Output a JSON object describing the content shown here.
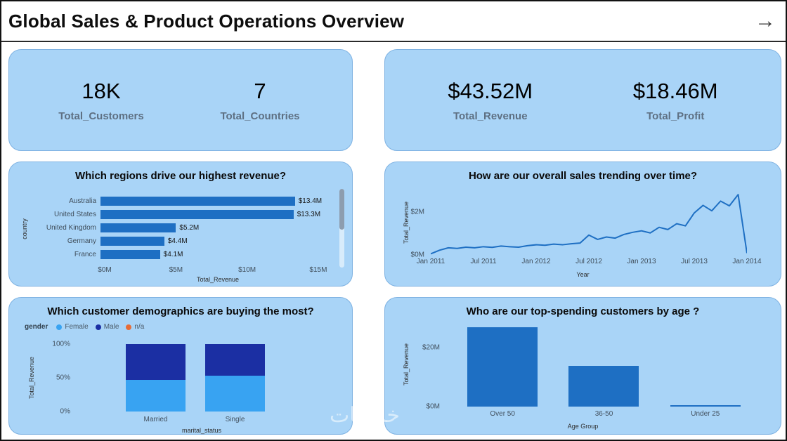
{
  "header": {
    "title": "Global Sales & Product Operations Overview",
    "arrow_icon": "→"
  },
  "colors": {
    "card_bg": "#A9D4F7",
    "card_border": "#7FB2E2",
    "bar": "#1E6FC3",
    "female": "#38A3F2",
    "male": "#1B2FA3",
    "na": "#E66C37"
  },
  "kpi_cards": [
    {
      "items": [
        {
          "value": "18K",
          "label": "Total_Customers"
        },
        {
          "value": "7",
          "label": "Total_Countries"
        }
      ]
    },
    {
      "items": [
        {
          "value": "$43.52M",
          "label": "Total_Revenue"
        },
        {
          "value": "$18.46M",
          "label": "Total_Profit"
        }
      ]
    }
  ],
  "chart_data": [
    {
      "id": "regions",
      "type": "bar",
      "orientation": "horizontal",
      "title": "Which regions drive our highest revenue?",
      "categories": [
        "Australia",
        "United States",
        "United Kingdom",
        "Germany",
        "France"
      ],
      "values": [
        13.4,
        13.3,
        5.2,
        4.4,
        4.1
      ],
      "data_labels": [
        "$13.4M",
        "$13.3M",
        "$5.2M",
        "$4.4M",
        "$4.1M"
      ],
      "x_ticks": [
        "$0M",
        "$5M",
        "$10M",
        "$15M"
      ],
      "xlim": [
        0,
        15.3
      ],
      "xlabel": "Total_Revenue",
      "ylabel": "country",
      "has_scrollbar": true
    },
    {
      "id": "trend",
      "type": "line",
      "title": "How are our overall sales trending over time?",
      "xlabel": "Year",
      "ylabel": "Total_Revenue",
      "y_ticks": [
        "$0M",
        "$2M"
      ],
      "ylim": [
        0,
        3.0
      ],
      "x_tick_labels": [
        "Jan 2011",
        "Jul 2011",
        "Jan 2012",
        "Jul 2012",
        "Jan 2013",
        "Jul 2013",
        "Jan 2014"
      ],
      "values_monthly": [
        0.05,
        0.22,
        0.33,
        0.3,
        0.36,
        0.33,
        0.38,
        0.35,
        0.41,
        0.38,
        0.36,
        0.43,
        0.47,
        0.45,
        0.5,
        0.47,
        0.52,
        0.55,
        0.92,
        0.72,
        0.83,
        0.78,
        0.95,
        1.05,
        1.12,
        1.02,
        1.28,
        1.18,
        1.45,
        1.35,
        1.95,
        2.3,
        2.05,
        2.5,
        2.28,
        2.8,
        0.08
      ]
    },
    {
      "id": "demographics",
      "type": "stacked-bar-100",
      "title": "Which customer demographics are buying the most?",
      "legend_title": "gender",
      "categories": [
        "Married",
        "Single"
      ],
      "series": [
        {
          "name": "Female",
          "color_key": "female",
          "values": [
            47,
            53
          ]
        },
        {
          "name": "Male",
          "color_key": "male",
          "values": [
            53,
            47
          ]
        },
        {
          "name": "n/a",
          "color_key": "na",
          "values": [
            0,
            0
          ]
        }
      ],
      "y_ticks": [
        "0%",
        "50%",
        "100%"
      ],
      "xlabel": "marital_status",
      "ylabel": "Total_Revenue"
    },
    {
      "id": "age",
      "type": "bar",
      "orientation": "vertical",
      "title": "Who are our top-spending customers by age ?",
      "categories": [
        "Over 50",
        "36-50",
        "Under 25"
      ],
      "values": [
        27,
        14,
        0.4
      ],
      "y_ticks": [
        "$0M",
        "$20M"
      ],
      "ylim": [
        0,
        28
      ],
      "xlabel": "Age Group",
      "ylabel": "Total_Revenue"
    }
  ],
  "watermark": "خمسات"
}
